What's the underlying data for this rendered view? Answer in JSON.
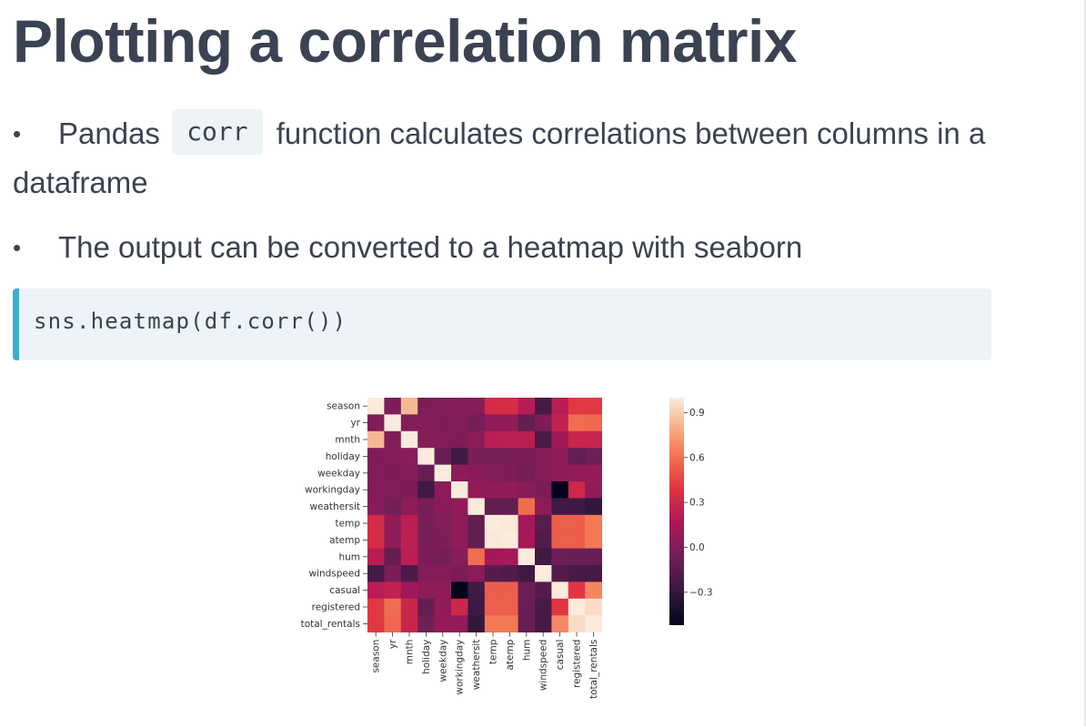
{
  "slide": {
    "title": "Plotting a correlation matrix",
    "bullets": [
      {
        "dot": "•",
        "before_code": "Pandas",
        "code": "corr",
        "after_code": "function calculates correlations between columns in a dataframe"
      },
      {
        "dot": "•",
        "text": "The output can be converted to a heatmap with seaborn"
      }
    ],
    "code_block": "sns.heatmap(df.corr())",
    "accent_color": "#3ab0c8"
  },
  "chart_data": {
    "type": "heatmap",
    "labels": [
      "season",
      "yr",
      "mnth",
      "holiday",
      "weekday",
      "workingday",
      "weathersit",
      "temp",
      "atemp",
      "hum",
      "windspeed",
      "casual",
      "registered",
      "total_rentals"
    ],
    "matrix": [
      [
        1.0,
        -0.01,
        0.83,
        -0.01,
        -0.0,
        0.01,
        0.02,
        0.33,
        0.34,
        0.21,
        -0.23,
        0.21,
        0.41,
        0.41
      ],
      [
        -0.01,
        1.0,
        -0.0,
        0.01,
        -0.01,
        -0.0,
        -0.05,
        0.05,
        0.05,
        -0.11,
        -0.01,
        0.25,
        0.59,
        0.57
      ],
      [
        0.83,
        -0.0,
        1.0,
        0.02,
        0.01,
        -0.01,
        0.04,
        0.22,
        0.23,
        0.22,
        -0.21,
        0.12,
        0.29,
        0.28
      ],
      [
        -0.01,
        0.01,
        0.02,
        1.0,
        -0.1,
        -0.25,
        -0.03,
        -0.03,
        -0.03,
        -0.02,
        0.01,
        0.05,
        -0.11,
        -0.07
      ],
      [
        -0.0,
        -0.01,
        0.01,
        -0.1,
        1.0,
        0.04,
        0.03,
        -0.0,
        -0.01,
        -0.05,
        0.01,
        0.06,
        0.06,
        0.07
      ],
      [
        0.01,
        -0.0,
        -0.01,
        -0.25,
        0.04,
        1.0,
        0.06,
        0.05,
        0.05,
        0.02,
        -0.02,
        -0.52,
        0.3,
        0.06
      ],
      [
        0.02,
        -0.05,
        0.04,
        -0.03,
        0.03,
        0.06,
        1.0,
        -0.12,
        -0.12,
        0.59,
        0.04,
        -0.25,
        -0.26,
        -0.3
      ],
      [
        0.33,
        0.05,
        0.22,
        -0.03,
        -0.0,
        0.05,
        -0.12,
        1.0,
        0.99,
        0.13,
        -0.16,
        0.54,
        0.54,
        0.63
      ],
      [
        0.34,
        0.05,
        0.23,
        -0.03,
        -0.01,
        0.05,
        -0.12,
        0.99,
        1.0,
        0.14,
        -0.18,
        0.54,
        0.54,
        0.63
      ],
      [
        0.21,
        -0.11,
        0.22,
        -0.02,
        -0.05,
        0.02,
        0.59,
        0.13,
        0.14,
        1.0,
        -0.25,
        -0.08,
        -0.09,
        -0.1
      ],
      [
        -0.23,
        -0.01,
        -0.21,
        0.01,
        0.01,
        -0.02,
        0.04,
        -0.16,
        -0.18,
        -0.25,
        1.0,
        -0.17,
        -0.22,
        -0.23
      ],
      [
        0.21,
        0.25,
        0.12,
        0.05,
        0.06,
        -0.52,
        -0.25,
        0.54,
        0.54,
        -0.08,
        -0.17,
        1.0,
        0.4,
        0.67
      ],
      [
        0.41,
        0.59,
        0.29,
        -0.11,
        0.06,
        0.3,
        -0.26,
        0.54,
        0.54,
        -0.09,
        -0.22,
        0.4,
        1.0,
        0.95
      ],
      [
        0.41,
        0.57,
        0.28,
        -0.07,
        0.07,
        0.06,
        -0.3,
        0.63,
        0.63,
        -0.1,
        -0.23,
        0.67,
        0.95,
        1.0
      ]
    ],
    "colorbar": {
      "vmin": -0.52,
      "vmax": 1.0,
      "ticks": [
        0.9,
        0.6,
        0.3,
        0.0,
        -0.3
      ],
      "tick_labels": [
        "0.9",
        "0.6",
        "0.3",
        "0.0",
        "−0.3"
      ]
    },
    "colormap": "rocket"
  }
}
